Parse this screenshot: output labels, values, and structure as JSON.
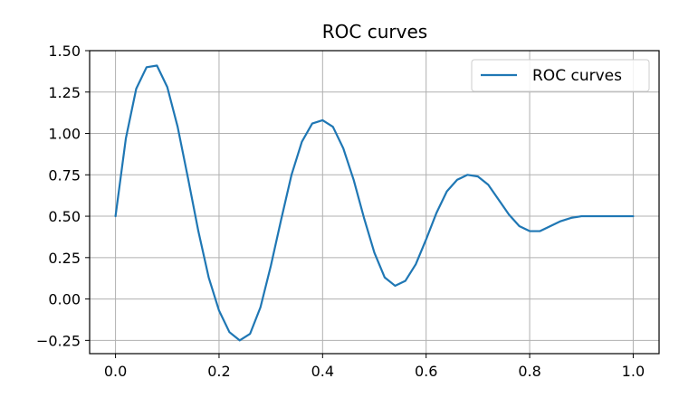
{
  "chart_data": {
    "type": "line",
    "title": "ROC curves",
    "xlabel": "",
    "ylabel": "",
    "xlim": [
      -0.05,
      1.05
    ],
    "ylim": [
      -0.33,
      1.5
    ],
    "grid": true,
    "legend_position": "top-right",
    "x_ticks": [
      {
        "value": 0.0,
        "label": "0.0"
      },
      {
        "value": 0.2,
        "label": "0.2"
      },
      {
        "value": 0.4,
        "label": "0.4"
      },
      {
        "value": 0.6,
        "label": "0.6"
      },
      {
        "value": 0.8,
        "label": "0.8"
      },
      {
        "value": 1.0,
        "label": "1.0"
      }
    ],
    "y_ticks": [
      {
        "value": -0.25,
        "label": "−0.25"
      },
      {
        "value": 0.0,
        "label": "0.00"
      },
      {
        "value": 0.25,
        "label": "0.25"
      },
      {
        "value": 0.5,
        "label": "0.50"
      },
      {
        "value": 0.75,
        "label": "0.75"
      },
      {
        "value": 1.0,
        "label": "1.00"
      },
      {
        "value": 1.25,
        "label": "1.25"
      },
      {
        "value": 1.5,
        "label": "1.50"
      }
    ],
    "series": [
      {
        "name": "ROC curves",
        "color": "#1f77b4",
        "x": [
          0.0,
          0.02,
          0.04,
          0.06,
          0.08,
          0.1,
          0.12,
          0.14,
          0.16,
          0.18,
          0.2,
          0.22,
          0.24,
          0.26,
          0.28,
          0.3,
          0.32,
          0.34,
          0.36,
          0.38,
          0.4,
          0.42,
          0.44,
          0.46,
          0.48,
          0.5,
          0.52,
          0.54,
          0.56,
          0.58,
          0.6,
          0.62,
          0.64,
          0.66,
          0.68,
          0.7,
          0.72,
          0.74,
          0.76,
          0.78,
          0.8,
          0.82,
          0.84,
          0.86,
          0.88,
          0.9,
          0.92,
          0.94,
          0.96,
          0.98,
          1.0
        ],
        "y": [
          0.5,
          0.97,
          1.27,
          1.4,
          1.41,
          1.28,
          1.04,
          0.73,
          0.41,
          0.13,
          -0.07,
          -0.2,
          -0.25,
          -0.21,
          -0.05,
          0.2,
          0.48,
          0.75,
          0.95,
          1.06,
          1.08,
          1.04,
          0.91,
          0.72,
          0.49,
          0.28,
          0.13,
          0.08,
          0.11,
          0.21,
          0.36,
          0.52,
          0.65,
          0.72,
          0.75,
          0.74,
          0.69,
          0.6,
          0.51,
          0.44,
          0.41,
          0.41,
          0.44,
          0.47,
          0.49,
          0.5,
          0.5,
          0.5,
          0.5,
          0.5,
          0.5
        ]
      }
    ]
  }
}
